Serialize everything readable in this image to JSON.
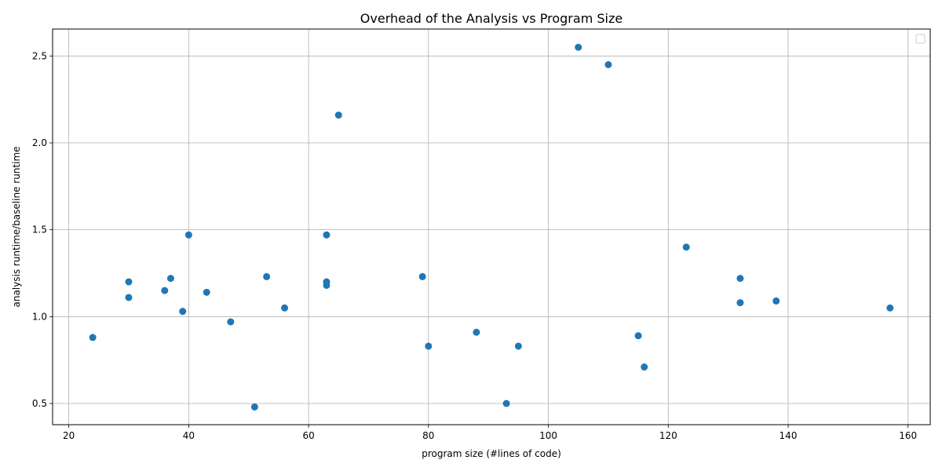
{
  "chart_data": {
    "type": "scatter",
    "title": "Overhead of the Analysis vs Program Size",
    "xlabel": "program size (#lines of code)",
    "ylabel": "analysis runtime/baseline runtime",
    "xlim": [
      17.3,
      163.7
    ],
    "ylim": [
      0.378,
      2.655
    ],
    "xticks": [
      20,
      40,
      60,
      80,
      100,
      120,
      140,
      160
    ],
    "yticks": [
      0.5,
      1.0,
      1.5,
      2.0,
      2.5
    ],
    "xtick_labels": [
      "20",
      "40",
      "60",
      "80",
      "100",
      "120",
      "140",
      "160"
    ],
    "ytick_labels": [
      "0.5",
      "1.0",
      "1.5",
      "2.0",
      "2.5"
    ],
    "grid": true,
    "legend": "top-right",
    "point_color": "#1f77b4",
    "points": [
      {
        "x": 24,
        "y": 0.88
      },
      {
        "x": 30,
        "y": 1.2
      },
      {
        "x": 30,
        "y": 1.11
      },
      {
        "x": 36,
        "y": 1.15
      },
      {
        "x": 37,
        "y": 1.22
      },
      {
        "x": 39,
        "y": 1.03
      },
      {
        "x": 40,
        "y": 1.47
      },
      {
        "x": 43,
        "y": 1.14
      },
      {
        "x": 47,
        "y": 0.97
      },
      {
        "x": 51,
        "y": 0.48
      },
      {
        "x": 53,
        "y": 1.23
      },
      {
        "x": 56,
        "y": 1.05
      },
      {
        "x": 63,
        "y": 1.47
      },
      {
        "x": 63,
        "y": 1.2
      },
      {
        "x": 63,
        "y": 1.18
      },
      {
        "x": 65,
        "y": 2.16
      },
      {
        "x": 79,
        "y": 1.23
      },
      {
        "x": 80,
        "y": 0.83
      },
      {
        "x": 88,
        "y": 0.91
      },
      {
        "x": 93,
        "y": 0.5
      },
      {
        "x": 95,
        "y": 0.83
      },
      {
        "x": 105,
        "y": 2.55
      },
      {
        "x": 110,
        "y": 2.45
      },
      {
        "x": 115,
        "y": 0.89
      },
      {
        "x": 116,
        "y": 0.71
      },
      {
        "x": 123,
        "y": 1.4
      },
      {
        "x": 132,
        "y": 1.22
      },
      {
        "x": 132,
        "y": 1.08
      },
      {
        "x": 138,
        "y": 1.09
      },
      {
        "x": 157,
        "y": 1.05
      }
    ]
  }
}
